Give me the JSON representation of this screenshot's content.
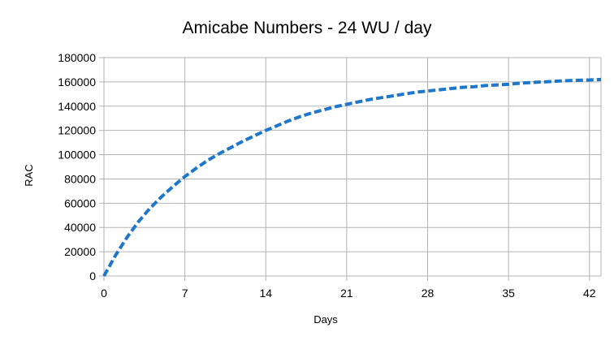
{
  "chart_data": {
    "type": "line",
    "title": "Amicabe Numbers - 24 WU / day",
    "xlabel": "Days",
    "ylabel": "RAC",
    "xlim": [
      0,
      43
    ],
    "ylim": [
      0,
      180000
    ],
    "x_ticks": [
      0,
      7,
      14,
      21,
      28,
      35,
      42
    ],
    "y_ticks": [
      0,
      20000,
      40000,
      60000,
      80000,
      100000,
      120000,
      140000,
      160000,
      180000
    ],
    "grid": true,
    "legend": "none",
    "series": [
      {
        "color": "#1f77c9",
        "line_style": "dashed",
        "x": [
          0,
          1,
          2,
          3,
          4,
          5,
          6,
          7,
          8,
          9,
          10,
          11,
          12,
          13,
          14,
          15,
          16,
          17,
          18,
          19,
          20,
          21,
          22,
          23,
          24,
          25,
          26,
          27,
          28,
          29,
          30,
          31,
          32,
          33,
          34,
          35,
          36,
          37,
          38,
          39,
          40,
          41,
          42,
          43
        ],
        "y": [
          0,
          17000,
          32000,
          45000,
          56000,
          65500,
          74000,
          82000,
          89000,
          95500,
          101000,
          106000,
          111000,
          115500,
          120000,
          124000,
          128000,
          131500,
          134500,
          137000,
          139500,
          141500,
          143500,
          145500,
          147000,
          148500,
          150000,
          151500,
          152500,
          153500,
          154500,
          155500,
          156000,
          157000,
          157500,
          158000,
          159000,
          159500,
          160000,
          160500,
          161000,
          161300,
          161600,
          162000
        ]
      }
    ]
  }
}
